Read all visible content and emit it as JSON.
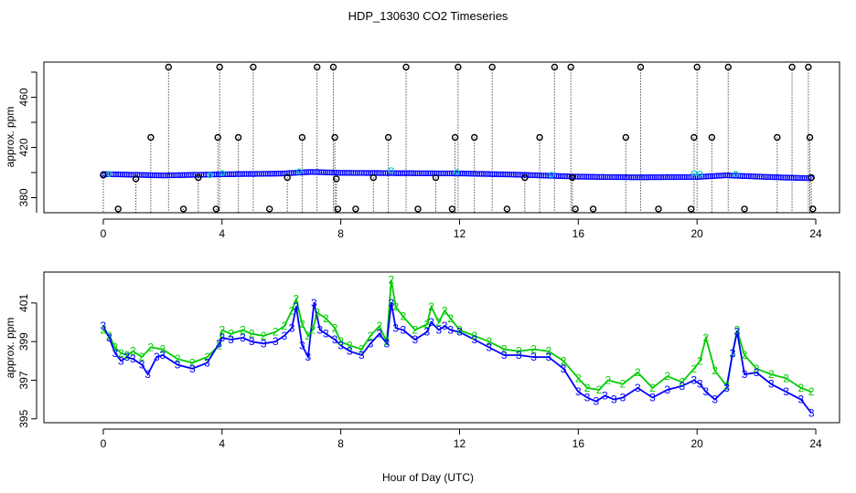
{
  "figure": {
    "title": "HDP_130630  CO2 Timeseries",
    "xlabel": "Hour of Day (UTC)"
  },
  "chart_data": [
    {
      "type": "scatter",
      "name": "top-panel",
      "title": "HDP_130630  CO2 Timeseries",
      "xlabel": "",
      "ylabel": "approx. ppm",
      "xlim": [
        -2,
        24.8
      ],
      "ylim": [
        368,
        488
      ],
      "xticks": [
        "0",
        "4",
        "8",
        "12",
        "16",
        "20",
        "24"
      ],
      "yticks": [
        "380",
        "420",
        "460"
      ],
      "yminor_ticks": [
        360,
        380,
        400,
        420,
        440,
        460,
        480
      ],
      "baseline_series": {
        "name": "main trace (blue circles)",
        "color": "#0000ff",
        "x": [
          0,
          2,
          4,
          6,
          7,
          8,
          10,
          12,
          14,
          16,
          18,
          20,
          21,
          22,
          23,
          24
        ],
        "y": [
          398.8,
          397.7,
          398.6,
          399.2,
          400.5,
          399.8,
          399.5,
          399.3,
          398.3,
          396.7,
          396.2,
          396.5,
          397.8,
          396.8,
          396.0,
          395.4
        ]
      },
      "cyan_series": {
        "name": "secondary trace (cyan circles)",
        "color": "#00cccc",
        "x": [
          0.2,
          3.6,
          4.0,
          6.6,
          9.7,
          11.9,
          15.1,
          19.9,
          20.1,
          21.3
        ],
        "y": [
          398.9,
          398.0,
          399.5,
          400.9,
          401.8,
          400.2,
          398.2,
          399.5,
          398.9,
          398.8
        ]
      },
      "outliers": {
        "name": "flagged points (black circles with dotted drop lines)",
        "color": "#000000",
        "drop_to": 360,
        "points": [
          [
            0.0,
            398
          ],
          [
            0.5,
            371
          ],
          [
            1.1,
            395
          ],
          [
            1.6,
            428
          ],
          [
            2.2,
            484
          ],
          [
            2.7,
            371
          ],
          [
            3.2,
            396
          ],
          [
            3.8,
            371
          ],
          [
            3.86,
            428
          ],
          [
            3.92,
            484
          ],
          [
            4.55,
            428
          ],
          [
            5.05,
            484
          ],
          [
            5.6,
            371
          ],
          [
            6.2,
            396
          ],
          [
            6.7,
            428
          ],
          [
            7.2,
            484
          ],
          [
            7.75,
            484
          ],
          [
            7.8,
            428
          ],
          [
            7.85,
            395
          ],
          [
            7.9,
            371
          ],
          [
            8.5,
            371
          ],
          [
            9.1,
            396
          ],
          [
            9.6,
            428
          ],
          [
            10.2,
            484
          ],
          [
            10.6,
            371
          ],
          [
            11.2,
            396
          ],
          [
            11.75,
            371
          ],
          [
            11.85,
            428
          ],
          [
            11.95,
            484
          ],
          [
            12.5,
            428
          ],
          [
            13.1,
            484
          ],
          [
            13.6,
            371
          ],
          [
            14.2,
            396
          ],
          [
            14.7,
            428
          ],
          [
            15.2,
            484
          ],
          [
            15.75,
            484
          ],
          [
            15.8,
            396
          ],
          [
            15.9,
            371
          ],
          [
            16.5,
            371
          ],
          [
            17.6,
            428
          ],
          [
            18.1,
            484
          ],
          [
            18.7,
            371
          ],
          [
            19.8,
            371
          ],
          [
            19.9,
            428
          ],
          [
            20.0,
            484
          ],
          [
            20.5,
            428
          ],
          [
            21.05,
            484
          ],
          [
            21.6,
            371
          ],
          [
            22.7,
            428
          ],
          [
            23.2,
            484
          ],
          [
            23.75,
            484
          ],
          [
            23.8,
            428
          ],
          [
            23.85,
            396
          ],
          [
            23.9,
            371
          ]
        ]
      }
    },
    {
      "type": "line",
      "name": "bottom-panel",
      "xlabel": "Hour of Day (UTC)",
      "ylabel": "approx. ppm",
      "xlim": [
        -2,
        24.8
      ],
      "ylim": [
        394.8,
        402.6
      ],
      "xticks": [
        "0",
        "4",
        "8",
        "12",
        "16",
        "20",
        "24"
      ],
      "yticks": [
        "395",
        "397",
        "399",
        "401"
      ],
      "series": [
        {
          "name": "green (2)",
          "marker": "2",
          "color": "#00cc00",
          "x": [
            0.0,
            0.2,
            0.4,
            0.6,
            0.8,
            1.0,
            1.3,
            1.6,
            2.0,
            2.5,
            3.0,
            3.5,
            3.9,
            4.0,
            4.3,
            4.7,
            5.0,
            5.4,
            5.8,
            6.1,
            6.35,
            6.5,
            6.7,
            6.9,
            7.05,
            7.2,
            7.5,
            7.8,
            8.0,
            8.3,
            8.7,
            9.0,
            9.3,
            9.55,
            9.7,
            9.85,
            10.1,
            10.5,
            10.9,
            11.05,
            11.3,
            11.5,
            11.7,
            12.0,
            12.5,
            13.0,
            13.5,
            14.0,
            14.5,
            15.0,
            15.5,
            16.0,
            16.3,
            16.7,
            17.0,
            17.5,
            18.0,
            18.5,
            19.0,
            19.5,
            19.9,
            20.1,
            20.3,
            20.6,
            21.0,
            21.2,
            21.35,
            21.6,
            22.0,
            22.5,
            23.0,
            23.5,
            23.85
          ],
          "y": [
            399.6,
            399.3,
            398.7,
            398.4,
            398.3,
            398.5,
            398.2,
            398.7,
            398.6,
            398.1,
            397.9,
            398.2,
            398.8,
            399.6,
            399.4,
            399.6,
            399.4,
            399.3,
            399.5,
            399.8,
            400.6,
            401.2,
            399.9,
            399.3,
            399.6,
            400.5,
            400.2,
            399.7,
            399.0,
            398.8,
            398.6,
            399.3,
            399.8,
            399.0,
            402.2,
            400.8,
            400.3,
            399.6,
            399.9,
            400.8,
            400.0,
            400.6,
            400.2,
            399.6,
            399.3,
            399.0,
            398.6,
            398.5,
            398.6,
            398.5,
            398.0,
            397.1,
            396.6,
            396.5,
            397.0,
            396.8,
            397.4,
            396.6,
            397.2,
            396.9,
            397.6,
            398.0,
            399.2,
            397.5,
            396.7,
            398.4,
            399.6,
            398.3,
            397.6,
            397.3,
            397.1,
            396.6,
            396.4
          ]
        },
        {
          "name": "blue (3)",
          "marker": "3",
          "color": "#0000ff",
          "x": [
            0.0,
            0.2,
            0.4,
            0.6,
            0.8,
            1.0,
            1.3,
            1.5,
            1.8,
            2.0,
            2.5,
            3.0,
            3.5,
            3.9,
            4.0,
            4.3,
            4.7,
            5.0,
            5.4,
            5.8,
            6.1,
            6.35,
            6.5,
            6.7,
            6.9,
            7.1,
            7.3,
            7.5,
            7.8,
            8.0,
            8.3,
            8.7,
            9.0,
            9.3,
            9.55,
            9.7,
            9.85,
            10.1,
            10.5,
            10.9,
            11.05,
            11.3,
            11.5,
            11.7,
            12.0,
            12.5,
            13.0,
            13.5,
            14.0,
            14.5,
            15.0,
            15.5,
            16.0,
            16.3,
            16.6,
            16.9,
            17.2,
            17.5,
            18.0,
            18.5,
            19.0,
            19.5,
            19.9,
            20.1,
            20.3,
            20.6,
            21.0,
            21.2,
            21.35,
            21.6,
            22.0,
            22.5,
            23.0,
            23.5,
            23.85
          ],
          "y": [
            399.8,
            399.2,
            398.4,
            398.0,
            398.2,
            398.1,
            397.8,
            397.3,
            398.2,
            398.3,
            397.8,
            397.6,
            397.9,
            398.9,
            399.2,
            399.1,
            399.2,
            399.0,
            398.9,
            399.0,
            399.3,
            399.7,
            400.8,
            398.8,
            398.2,
            401.0,
            399.6,
            399.4,
            399.1,
            398.8,
            398.5,
            398.3,
            398.9,
            399.4,
            398.9,
            401.0,
            399.7,
            399.6,
            399.1,
            399.5,
            400.0,
            399.6,
            399.8,
            399.6,
            399.5,
            399.1,
            398.7,
            398.3,
            398.3,
            398.2,
            398.2,
            397.6,
            396.4,
            396.1,
            395.9,
            396.2,
            396.0,
            396.1,
            396.6,
            396.1,
            396.5,
            396.7,
            397.0,
            396.8,
            396.4,
            396.0,
            396.6,
            398.4,
            399.5,
            397.3,
            397.4,
            396.8,
            396.4,
            396.0,
            395.3
          ]
        }
      ]
    }
  ]
}
